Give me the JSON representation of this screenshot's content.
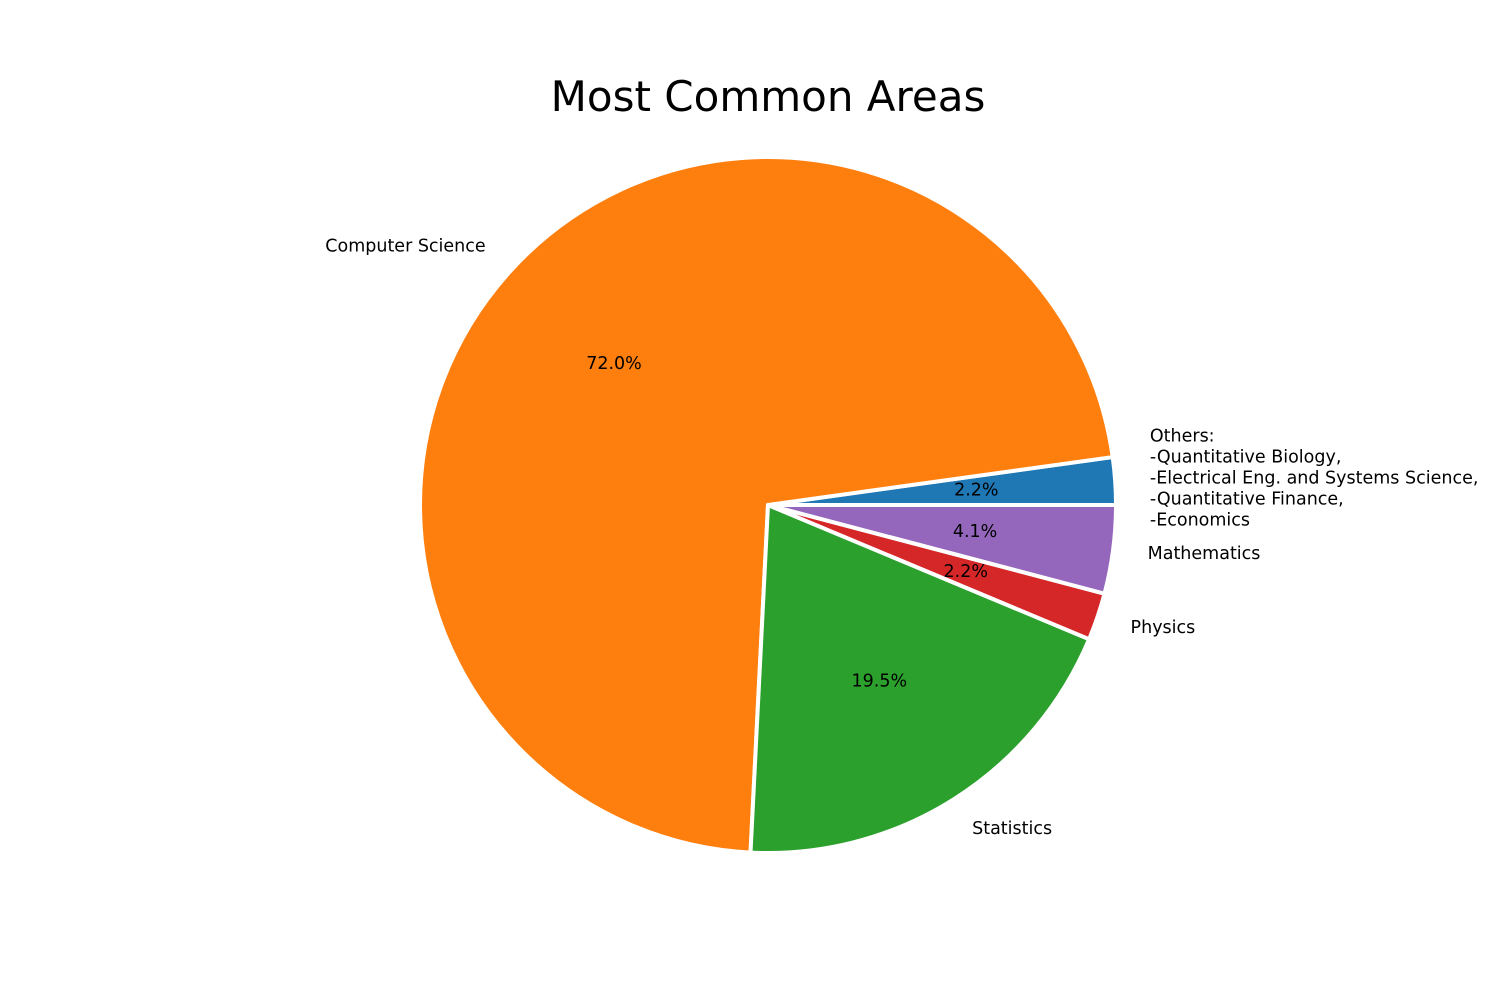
{
  "chart_data": {
    "type": "pie",
    "title": "Most Common Areas",
    "start_angle_deg": 0,
    "direction": "counterclockwise",
    "slice_edge_color": "#ffffff",
    "slices": [
      {
        "label": "Others:\n-Quantitative Biology,\n-Electrical Eng. and Systems Science,\n-Quantitative Finance,\n-Economics",
        "percent": 2.2,
        "pct_label": "2.2%",
        "color": "#1f77b4"
      },
      {
        "label": "Computer Science",
        "percent": 72.0,
        "pct_label": "72.0%",
        "color": "#ff7f0e"
      },
      {
        "label": "Statistics",
        "percent": 19.5,
        "pct_label": "19.5%",
        "color": "#2ca02c"
      },
      {
        "label": "Physics",
        "percent": 2.2,
        "pct_label": "2.2%",
        "color": "#d62728"
      },
      {
        "label": "Mathematics",
        "percent": 4.1,
        "pct_label": "4.1%",
        "color": "#9467bd"
      }
    ]
  }
}
